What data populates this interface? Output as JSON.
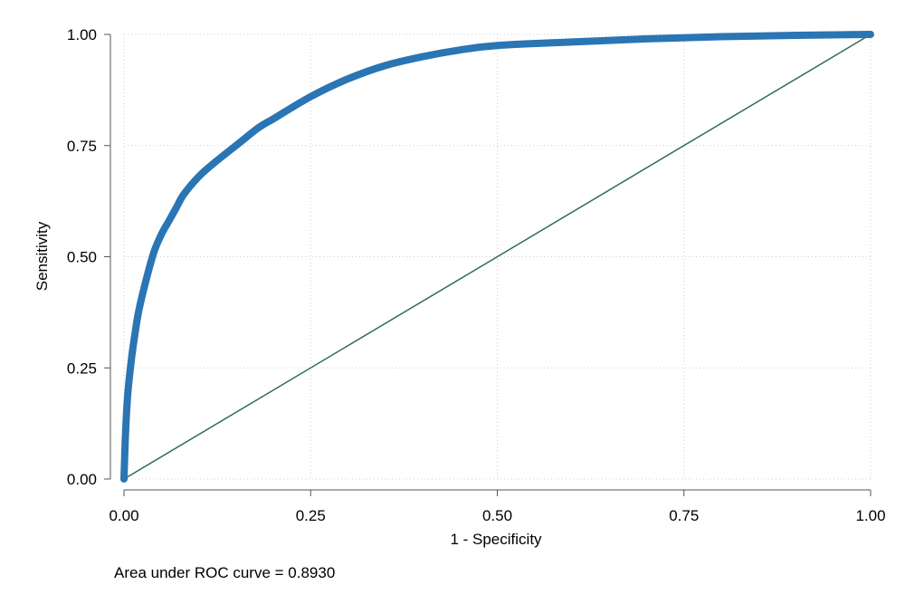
{
  "chart_data": {
    "type": "line",
    "xlabel": "1 - Specificity",
    "ylabel": "Sensitivity",
    "xlim": [
      0,
      1
    ],
    "ylim": [
      0,
      1
    ],
    "x_ticks": [
      "0.00",
      "0.25",
      "0.50",
      "0.75",
      "1.00"
    ],
    "y_ticks": [
      "0.00",
      "0.25",
      "0.50",
      "0.75",
      "1.00"
    ],
    "grid": true,
    "note": "Area under ROC curve = 0.8930",
    "colors": {
      "roc": "#2a75b3",
      "reference": "#2e6b5e",
      "grid": "#cfcfcf",
      "axis": "#555555"
    },
    "series": [
      {
        "x": [
          0,
          0.002,
          0.005,
          0.01,
          0.015,
          0.02,
          0.03,
          0.04,
          0.05,
          0.06,
          0.07,
          0.08,
          0.1,
          0.12,
          0.15,
          0.18,
          0.2,
          0.25,
          0.3,
          0.35,
          0.4,
          0.45,
          0.5,
          0.6,
          0.7,
          0.8,
          0.9,
          1.0
        ],
        "y": [
          0,
          0.1,
          0.19,
          0.27,
          0.33,
          0.38,
          0.45,
          0.51,
          0.55,
          0.58,
          0.61,
          0.64,
          0.68,
          0.71,
          0.75,
          0.79,
          0.81,
          0.86,
          0.9,
          0.93,
          0.95,
          0.965,
          0.975,
          0.983,
          0.99,
          0.995,
          0.998,
          1.0
        ]
      },
      {
        "x": [
          0,
          1
        ],
        "y": [
          0,
          1
        ]
      }
    ]
  }
}
